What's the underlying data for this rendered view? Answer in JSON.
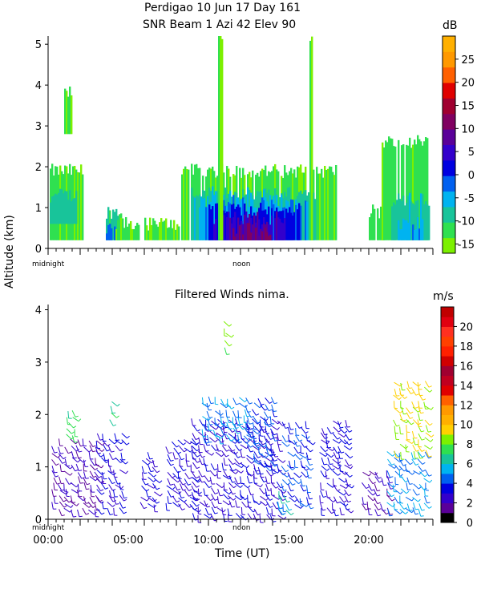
{
  "header": {
    "title_line1": "Perdigao  10 Jun 17 Day 161",
    "title_line2": "SNR Beam 1 Azi  42 Elev 90"
  },
  "shared": {
    "ylabel": "Altitude (km)",
    "xlabel": "Time (UT)",
    "midnight_label": "midnight",
    "noon_label": "noon"
  },
  "chart_data": [
    {
      "type": "heatmap",
      "title": "SNR Beam 1 Azi  42 Elev 90",
      "ylim": [
        0,
        5.2
      ],
      "yticks": [
        0,
        1,
        2,
        3,
        4,
        5
      ],
      "colorbar": {
        "unit": "dB",
        "ticks": [
          -15,
          -10,
          -5,
          0,
          5,
          10,
          15,
          20,
          25
        ],
        "range": [
          -17,
          30
        ],
        "colors": [
          "#7cf000",
          "#2fe050",
          "#18c49a",
          "#00b3f0",
          "#0060f0",
          "#0000e0",
          "#3300cc",
          "#5a0099",
          "#800060",
          "#a00030",
          "#e00000",
          "#ff6000",
          "#ff9900",
          "#ffb000"
        ]
      },
      "regions": [
        {
          "t0": 0.1,
          "t1": 2.2,
          "a0": 0.2,
          "a1": 1.9,
          "db": -13
        },
        {
          "t0": 0.1,
          "t1": 1.8,
          "a0": 0.6,
          "a1": 1.3,
          "db": -8
        },
        {
          "t0": 3.6,
          "t1": 4.6,
          "a0": 0.2,
          "a1": 0.9,
          "db": -10
        },
        {
          "t0": 3.6,
          "t1": 4.2,
          "a0": 0.2,
          "a1": 0.5,
          "db": -2
        },
        {
          "t0": 4.2,
          "t1": 5.7,
          "a0": 0.2,
          "a1": 0.6,
          "db": -13
        },
        {
          "t0": 6.0,
          "t1": 8.2,
          "a0": 0.2,
          "a1": 0.6,
          "db": -13
        },
        {
          "t0": 8.2,
          "t1": 18.0,
          "a0": 0.2,
          "a1": 1.9,
          "db": -13
        },
        {
          "t0": 8.8,
          "t1": 16.8,
          "a0": 0.2,
          "a1": 1.35,
          "db": -8
        },
        {
          "t0": 9.4,
          "t1": 16.2,
          "a0": 0.2,
          "a1": 1.15,
          "db": -4
        },
        {
          "t0": 10.0,
          "t1": 15.8,
          "a0": 0.2,
          "a1": 0.95,
          "db": 1
        },
        {
          "t0": 10.3,
          "t1": 14.8,
          "a0": 0.2,
          "a1": 0.75,
          "db": 6
        },
        {
          "t0": 11.5,
          "t1": 13.8,
          "a0": 0.2,
          "a1": 0.45,
          "db": 10
        },
        {
          "t0": 19.8,
          "t1": 21.0,
          "a0": 0.2,
          "a1": 0.9,
          "db": -12
        },
        {
          "t0": 20.8,
          "t1": 23.8,
          "a0": 0.2,
          "a1": 2.6,
          "db": -13
        },
        {
          "t0": 21.4,
          "t1": 23.8,
          "a0": 0.2,
          "a1": 1.2,
          "db": -8
        },
        {
          "t0": 21.8,
          "t1": 23.4,
          "a0": 0.2,
          "a1": 0.6,
          "db": -4
        },
        {
          "t0": 10.6,
          "t1": 10.9,
          "a0": 0.2,
          "a1": 5.2,
          "db": -14
        },
        {
          "t0": 16.3,
          "t1": 16.5,
          "a0": 0.2,
          "a1": 5.2,
          "db": -14
        },
        {
          "t0": 1.0,
          "t1": 1.5,
          "a0": 2.8,
          "a1": 3.8,
          "db": -14
        }
      ]
    },
    {
      "type": "scatter",
      "title": "Filtered Winds nima.",
      "ylim": [
        0,
        4.1
      ],
      "yticks": [
        0,
        1,
        2,
        3,
        4
      ],
      "xlim": [
        0,
        24
      ],
      "xticks": [
        0,
        5,
        10,
        15,
        20
      ],
      "xtick_labels": [
        "00:00",
        "05:00",
        "10:00",
        "15:00",
        "20:00"
      ],
      "colorbar": {
        "unit": "m/s",
        "ticks": [
          0,
          2,
          4,
          6,
          8,
          10,
          12,
          14,
          16,
          18,
          20
        ],
        "range": [
          0,
          22
        ],
        "colors": [
          "#000000",
          "#5a0099",
          "#3300cc",
          "#0000e0",
          "#0060f0",
          "#00b3f0",
          "#18c49a",
          "#2fe050",
          "#7cf000",
          "#ffd000",
          "#ffb000",
          "#ff9900",
          "#ff6000",
          "#e00000",
          "#c00020",
          "#a00030",
          "#d00000",
          "#ff2000",
          "#ff4000",
          "#ff3020",
          "#e00010",
          "#c00000"
        ]
      },
      "barb_groups": [
        {
          "t0": 0.3,
          "t1": 3.0,
          "a0": 0.2,
          "a1": 1.6,
          "speed": 2
        },
        {
          "t0": 1.2,
          "t1": 1.6,
          "a0": 1.6,
          "a1": 2.1,
          "speed": 7
        },
        {
          "t0": 3.0,
          "t1": 4.8,
          "a0": 0.2,
          "a1": 1.7,
          "speed": 3
        },
        {
          "t0": 3.9,
          "t1": 4.2,
          "a0": 1.9,
          "a1": 2.3,
          "speed": 7
        },
        {
          "t0": 5.8,
          "t1": 6.6,
          "a0": 0.3,
          "a1": 1.3,
          "speed": 3
        },
        {
          "t0": 7.4,
          "t1": 9.0,
          "a0": 0.3,
          "a1": 1.6,
          "speed": 3
        },
        {
          "t0": 9.0,
          "t1": 14.6,
          "a0": 0.1,
          "a1": 2.0,
          "speed": 3
        },
        {
          "t0": 9.6,
          "t1": 12.4,
          "a0": 1.6,
          "a1": 2.4,
          "speed": 5
        },
        {
          "t0": 12.4,
          "t1": 14.2,
          "a0": 1.0,
          "a1": 2.4,
          "speed": 4
        },
        {
          "t0": 14.6,
          "t1": 16.4,
          "a0": 0.3,
          "a1": 1.9,
          "speed": 4
        },
        {
          "t0": 14.4,
          "t1": 15.0,
          "a0": 0.2,
          "a1": 0.6,
          "speed": 6
        },
        {
          "t0": 17.0,
          "t1": 18.6,
          "a0": 0.2,
          "a1": 2.0,
          "speed": 3
        },
        {
          "t0": 19.6,
          "t1": 21.4,
          "a0": 0.2,
          "a1": 1.0,
          "speed": 2
        },
        {
          "t0": 21.2,
          "t1": 23.8,
          "a0": 0.2,
          "a1": 1.3,
          "speed": 5
        },
        {
          "t0": 21.6,
          "t1": 23.8,
          "a0": 1.3,
          "a1": 2.7,
          "speed": 9
        },
        {
          "t0": 11.0,
          "t1": 11.2,
          "a0": 3.3,
          "a1": 3.8,
          "speed": 8
        }
      ]
    }
  ]
}
